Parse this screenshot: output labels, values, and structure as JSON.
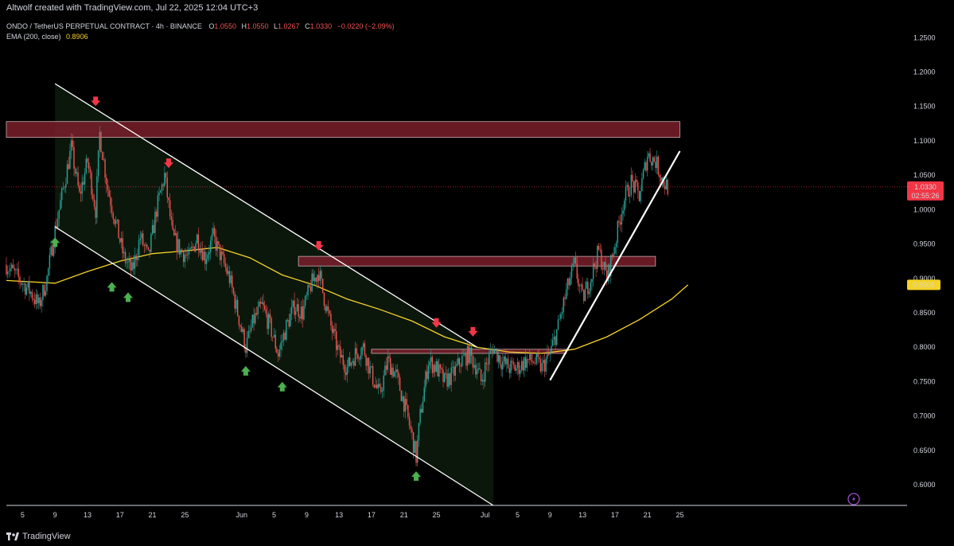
{
  "credit": "Altwolf created with TradingView.com, Jul 22, 2025 12:04 UTC+3",
  "footer_brand": "TradingView",
  "legend": {
    "symbol": "ONDO / TetherUS PERPETUAL CONTRACT · 4h · BINANCE",
    "open_label": "O",
    "open": "1.0550",
    "high_label": "H",
    "high": "1.0550",
    "low_label": "L",
    "low": "1.0267",
    "close_label": "C",
    "close": "1.0330",
    "change": "−0.0220 (−2.09%)",
    "ema_label": "EMA (200, close)",
    "ema_value": "0.8906"
  },
  "colors": {
    "up": "#26a69a",
    "down": "#ef5350",
    "ema": "#f5d327",
    "zone": "#7a1f2b",
    "channel": "#ffffff",
    "channel_fill": "#0d1a0d",
    "text": "#d1d4dc",
    "price_tag": "#f23645"
  },
  "chart_data": {
    "type": "candlestick",
    "timeframe": "4h",
    "x_range_days": [
      -28,
      83
    ],
    "ylim": [
      0.57,
      1.27
    ],
    "y_ticks": [
      "1.2500",
      "1.2000",
      "1.1500",
      "1.1000",
      "1.0500",
      "1.0000",
      "0.9500",
      "0.9000",
      "0.8500",
      "0.8000",
      "0.7500",
      "0.7000",
      "0.6500",
      "0.6000"
    ],
    "x_ticks": [
      {
        "label": "5",
        "day": -26
      },
      {
        "label": "9",
        "day": -22
      },
      {
        "label": "13",
        "day": -18
      },
      {
        "label": "17",
        "day": -14
      },
      {
        "label": "21",
        "day": -10
      },
      {
        "label": "25",
        "day": -6
      },
      {
        "label": "Jun",
        "day": 1
      },
      {
        "label": "5",
        "day": 5
      },
      {
        "label": "9",
        "day": 9
      },
      {
        "label": "13",
        "day": 13
      },
      {
        "label": "17",
        "day": 17
      },
      {
        "label": "21",
        "day": 21
      },
      {
        "label": "25",
        "day": 25
      },
      {
        "label": "Jul",
        "day": 31
      },
      {
        "label": "5",
        "day": 35
      },
      {
        "label": "9",
        "day": 39
      },
      {
        "label": "13",
        "day": 43
      },
      {
        "label": "17",
        "day": 47
      },
      {
        "label": "21",
        "day": 51
      },
      {
        "label": "25",
        "day": 55
      }
    ],
    "price_path": [
      [
        -28,
        0.92
      ],
      [
        -26.5,
        0.9
      ],
      [
        -25,
        0.88
      ],
      [
        -24,
        0.86
      ],
      [
        -23,
        0.9
      ],
      [
        -22,
        0.97
      ],
      [
        -21,
        1.03
      ],
      [
        -20,
        1.09
      ],
      [
        -19,
        1.02
      ],
      [
        -18,
        1.07
      ],
      [
        -17,
        1.0
      ],
      [
        -16.5,
        1.11
      ],
      [
        -15.5,
        1.03
      ],
      [
        -14.5,
        0.98
      ],
      [
        -13.5,
        0.93
      ],
      [
        -12.5,
        0.91
      ],
      [
        -11.5,
        0.96
      ],
      [
        -10.5,
        0.93
      ],
      [
        -9.5,
        1.0
      ],
      [
        -8.5,
        1.05
      ],
      [
        -7.5,
        0.96
      ],
      [
        -6.5,
        0.94
      ],
      [
        -5.5,
        0.93
      ],
      [
        -4.5,
        0.96
      ],
      [
        -3.5,
        0.93
      ],
      [
        -2.5,
        0.96
      ],
      [
        -1.5,
        0.93
      ],
      [
        -0.5,
        0.9
      ],
      [
        0.5,
        0.85
      ],
      [
        1.5,
        0.8
      ],
      [
        2.5,
        0.84
      ],
      [
        3.5,
        0.86
      ],
      [
        4.5,
        0.83
      ],
      [
        5.5,
        0.79
      ],
      [
        6.5,
        0.83
      ],
      [
        7.5,
        0.86
      ],
      [
        8.5,
        0.85
      ],
      [
        9.5,
        0.89
      ],
      [
        10.5,
        0.91
      ],
      [
        11,
        0.88
      ],
      [
        12,
        0.83
      ],
      [
        13,
        0.79
      ],
      [
        14,
        0.77
      ],
      [
        15,
        0.79
      ],
      [
        16,
        0.8
      ],
      [
        17,
        0.76
      ],
      [
        18,
        0.73
      ],
      [
        19,
        0.78
      ],
      [
        20,
        0.76
      ],
      [
        21,
        0.72
      ],
      [
        22,
        0.67
      ],
      [
        22.5,
        0.64
      ],
      [
        23,
        0.7
      ],
      [
        24,
        0.78
      ],
      [
        25,
        0.77
      ],
      [
        26,
        0.75
      ],
      [
        27,
        0.76
      ],
      [
        28,
        0.78
      ],
      [
        29,
        0.79
      ],
      [
        30,
        0.77
      ],
      [
        30.5,
        0.75
      ],
      [
        31,
        0.77
      ],
      [
        32,
        0.8
      ],
      [
        33,
        0.78
      ],
      [
        34,
        0.77
      ],
      [
        35,
        0.77
      ],
      [
        36,
        0.78
      ],
      [
        37,
        0.78
      ],
      [
        38,
        0.77
      ],
      [
        39,
        0.79
      ],
      [
        40,
        0.83
      ],
      [
        41,
        0.88
      ],
      [
        42,
        0.92
      ],
      [
        43,
        0.87
      ],
      [
        44,
        0.9
      ],
      [
        45,
        0.94
      ],
      [
        46,
        0.9
      ],
      [
        47,
        0.95
      ],
      [
        48,
        1.01
      ],
      [
        49,
        1.04
      ],
      [
        50,
        1.02
      ],
      [
        51,
        1.08
      ],
      [
        52,
        1.07
      ],
      [
        53,
        1.04
      ],
      [
        53.5,
        1.033
      ]
    ],
    "ema_path": [
      [
        -28,
        0.897
      ],
      [
        -22,
        0.893
      ],
      [
        -18,
        0.91
      ],
      [
        -14,
        0.925
      ],
      [
        -10,
        0.936
      ],
      [
        -6,
        0.94
      ],
      [
        -2,
        0.945
      ],
      [
        2,
        0.93
      ],
      [
        6,
        0.905
      ],
      [
        10,
        0.89
      ],
      [
        14,
        0.87
      ],
      [
        18,
        0.855
      ],
      [
        22,
        0.838
      ],
      [
        26,
        0.815
      ],
      [
        30,
        0.8
      ],
      [
        34,
        0.793
      ],
      [
        38,
        0.791
      ],
      [
        42,
        0.797
      ],
      [
        46,
        0.815
      ],
      [
        50,
        0.84
      ],
      [
        54,
        0.87
      ],
      [
        56,
        0.8906
      ]
    ],
    "resistance_zones": [
      {
        "from_day": -28,
        "to_day": 55,
        "low": 1.105,
        "high": 1.128
      },
      {
        "from_day": 8,
        "to_day": 52,
        "low": 0.918,
        "high": 0.932
      },
      {
        "from_day": 17,
        "to_day": 41,
        "low": 0.791,
        "high": 0.797
      }
    ],
    "channel": {
      "upper": [
        [
          -22,
          1.183
        ],
        [
          30,
          0.8
        ]
      ],
      "lower": [
        [
          -22,
          0.975
        ],
        [
          32,
          0.57
        ]
      ],
      "fill_from_day": -22,
      "fill_to_day": 32
    },
    "trendline": [
      [
        39,
        0.752
      ],
      [
        55,
        1.085
      ]
    ],
    "down_arrows": [
      [
        -17,
        1.155
      ],
      [
        -8,
        1.065
      ],
      [
        10.5,
        0.945
      ],
      [
        25,
        0.833
      ],
      [
        29.5,
        0.82
      ]
    ],
    "up_arrows": [
      [
        -22,
        0.955
      ],
      [
        -15,
        0.89
      ],
      [
        -13,
        0.875
      ],
      [
        1.5,
        0.768
      ],
      [
        6,
        0.745
      ],
      [
        22.5,
        0.615
      ]
    ],
    "current_price": "1.0330",
    "countdown": "02:55:26",
    "ema_tag": "0.8906"
  }
}
